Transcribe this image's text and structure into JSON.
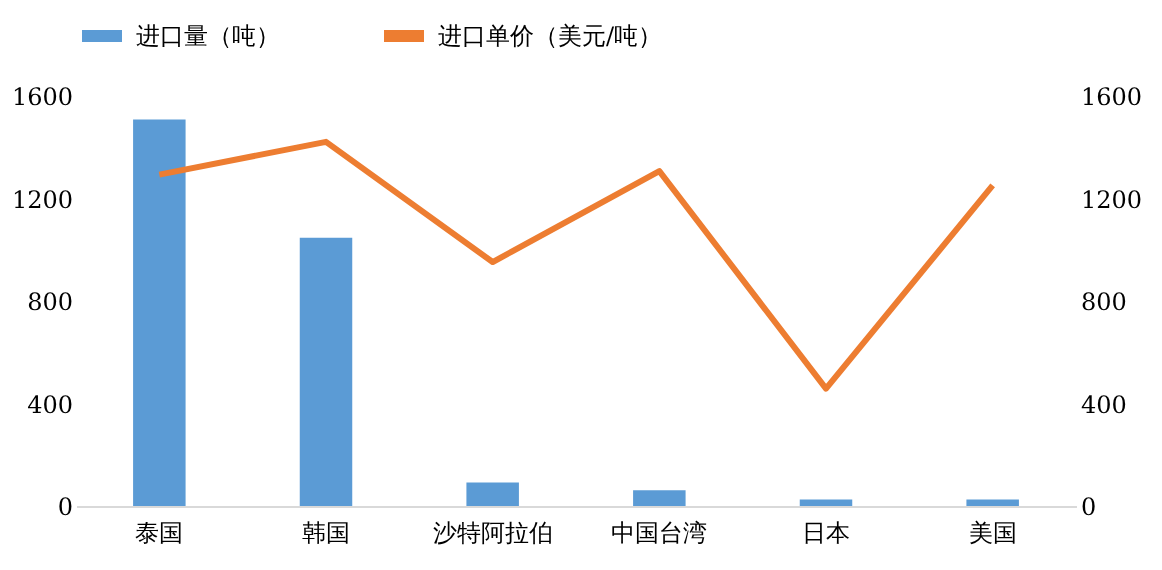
{
  "chart_data": {
    "type": "bar",
    "categories": [
      "泰国",
      "韩国",
      "沙特阿拉伯",
      "中国台湾",
      "日本",
      "美国"
    ],
    "series": [
      {
        "name": "进口量（吨）",
        "color": "#5b9bd5",
        "values": [
          1508,
          1047,
          92,
          61,
          25,
          25
        ]
      },
      {
        "name": "进口单价（美元/吨）",
        "color": "#ed7d31",
        "type": "line",
        "axis": "y2",
        "values": [
          1293,
          1421,
          952,
          1307,
          458,
          1251
        ]
      }
    ],
    "ylim": [
      0,
      1600
    ],
    "yticks": [
      0,
      400,
      800,
      1200,
      1600
    ],
    "y2lim": [
      0,
      1600
    ],
    "y2ticks": [
      0,
      400,
      800,
      1200,
      1600
    ],
    "grid": false,
    "legend": "top",
    "marker": "none"
  }
}
